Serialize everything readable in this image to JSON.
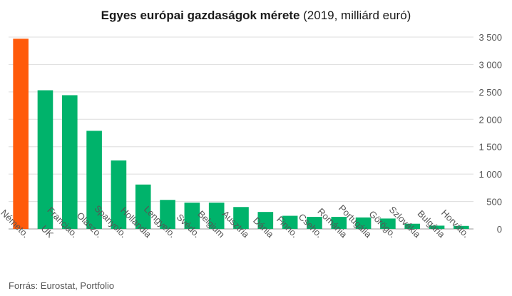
{
  "title": {
    "bold": "Egyes európai gazdaságok mérete",
    "normal": " (2019, milliárd euró)"
  },
  "source": "Forrás: Eurostat, Portfolio",
  "colors": {
    "highlight": "#ff5a0a",
    "bar": "#00b36b",
    "grid": "#dddddd",
    "axis": "#999999",
    "text": "#555555"
  },
  "chart_data": {
    "type": "bar",
    "title": "Egyes európai gazdaságok mérete (2019, milliárd euró)",
    "categories": [
      "Németo.",
      "UK",
      "Franciao.",
      "Olaszo.",
      "Spanyolo.",
      "Hollandia",
      "Lengyelo.",
      "Svédo.",
      "Belgium",
      "Ausztria",
      "Dánia",
      "Finno.",
      "Cseho.",
      "Románia",
      "Portugália",
      "Görögo.",
      "Szlovákia",
      "Bulgária",
      "Horváto."
    ],
    "values": [
      3470,
      2530,
      2440,
      1790,
      1250,
      810,
      530,
      480,
      480,
      400,
      310,
      240,
      220,
      220,
      210,
      190,
      95,
      60,
      55
    ],
    "highlight_index": 0,
    "ylim": [
      0,
      3500
    ],
    "yticks": [
      0,
      500,
      1000,
      1500,
      2000,
      2500,
      3000,
      3500
    ],
    "ytick_labels": [
      "0",
      "500",
      "1 000",
      "1 500",
      "2 000",
      "2 500",
      "3 000",
      "3 500"
    ],
    "xlabel": "",
    "ylabel": "",
    "y_axis_side": "right",
    "grid": true,
    "legend": "none"
  }
}
